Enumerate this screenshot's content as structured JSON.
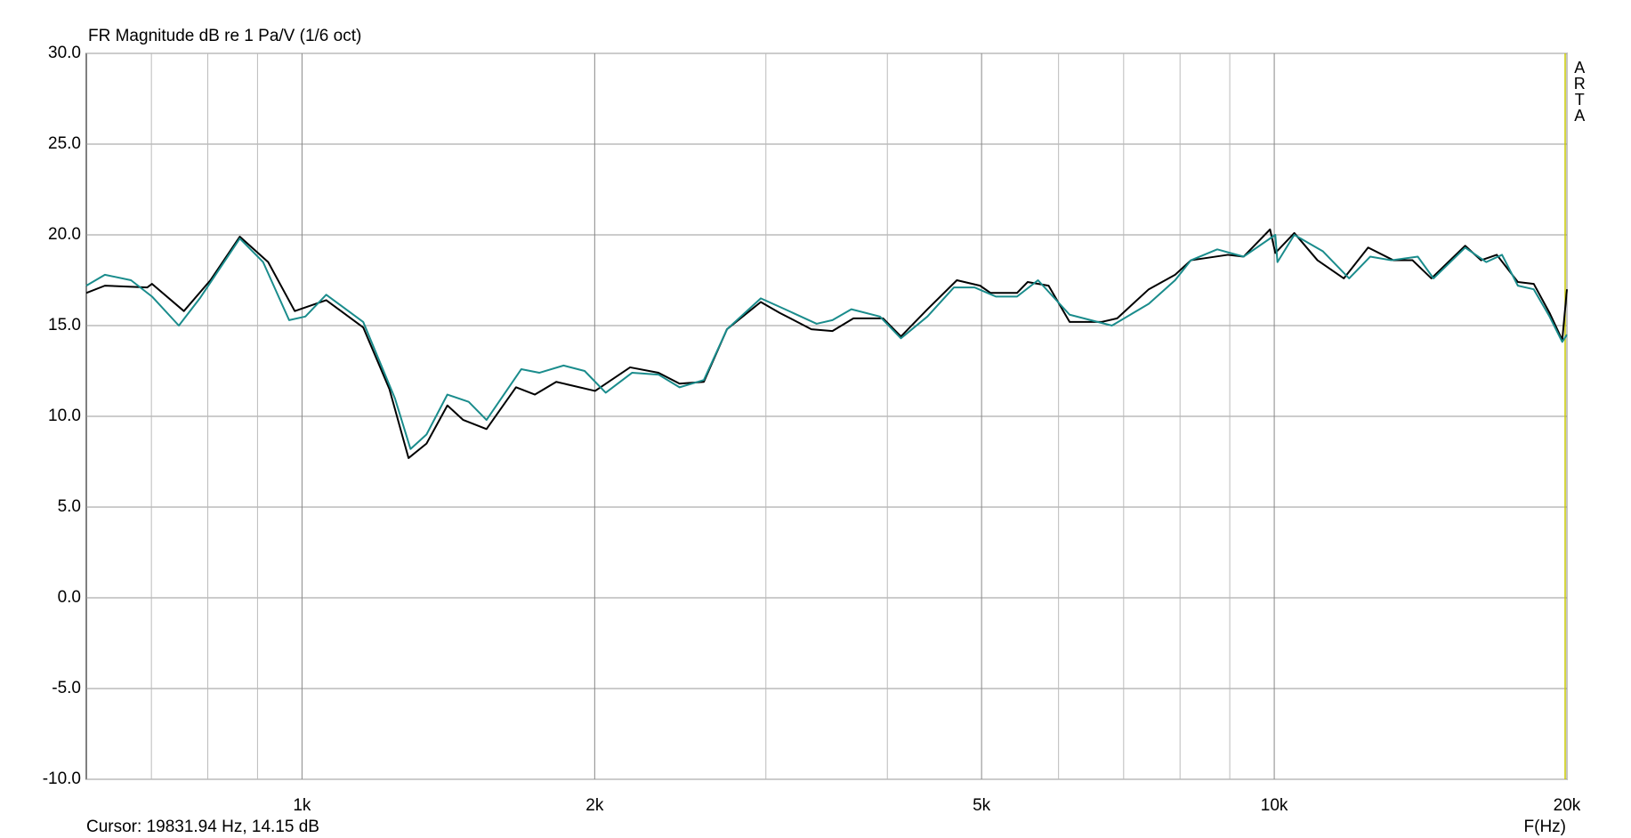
{
  "chart_data": {
    "type": "line",
    "title": "FR Magnitude dB re 1 Pa/V (1/6 oct)",
    "x_label": "F(Hz)",
    "cursor": "Cursor: 19831.94 Hz, 14.15 dB",
    "watermark": "ARTA",
    "xscale": "log",
    "xlim": [
      600,
      20000
    ],
    "ylim": [
      -10,
      30
    ],
    "grid": true,
    "xticks": [
      {
        "value": 1000,
        "label": "1k"
      },
      {
        "value": 2000,
        "label": "2k"
      },
      {
        "value": 5000,
        "label": "5k"
      },
      {
        "value": 10000,
        "label": "10k"
      },
      {
        "value": 20000,
        "label": "20k"
      }
    ],
    "xgrid_minor": [
      700,
      800,
      900,
      3000,
      4000,
      6000,
      7000,
      8000,
      9000
    ],
    "yticks": [
      {
        "value": 30,
        "label": "30.0"
      },
      {
        "value": 25,
        "label": "25.0"
      },
      {
        "value": 20,
        "label": "20.0"
      },
      {
        "value": 15,
        "label": "15.0"
      },
      {
        "value": 10,
        "label": "10.0"
      },
      {
        "value": 5,
        "label": "5.0"
      },
      {
        "value": 0,
        "label": "0.0"
      },
      {
        "value": -5,
        "label": "-5.0"
      },
      {
        "value": -10,
        "label": "-10.0"
      }
    ],
    "series": [
      {
        "color": "#000000",
        "x": [
          600,
          627,
          693,
          701,
          756,
          805,
          863,
          923,
          983,
          1059,
          1156,
          1230,
          1287,
          1343,
          1411,
          1465,
          1548,
          1660,
          1736,
          1826,
          2002,
          2175,
          2326,
          2445,
          2590,
          2736,
          2964,
          3100,
          3341,
          3512,
          3691,
          3959,
          4131,
          4398,
          4716,
          4982,
          5108,
          5438,
          5576,
          5860,
          6159,
          6640,
          6893,
          7429,
          7907,
          8209,
          8960,
          9301,
          9901,
          10025,
          10486,
          11078,
          11790,
          12490,
          13260,
          13875,
          14508,
          15717,
          16318,
          16938,
          17806,
          18488,
          19193,
          19780,
          20000
        ],
        "values": [
          16.8,
          17.2,
          17.1,
          17.3,
          15.8,
          17.5,
          19.9,
          18.5,
          15.8,
          16.4,
          14.9,
          11.5,
          7.7,
          8.5,
          10.6,
          9.8,
          9.3,
          11.6,
          11.2,
          11.9,
          11.4,
          12.7,
          12.4,
          11.8,
          11.9,
          14.8,
          16.3,
          15.7,
          14.8,
          14.7,
          15.4,
          15.4,
          14.4,
          15.9,
          17.5,
          17.2,
          16.8,
          16.8,
          17.4,
          17.2,
          15.2,
          15.2,
          15.4,
          17.0,
          17.8,
          18.6,
          18.9,
          18.8,
          20.3,
          19.0,
          20.1,
          18.6,
          17.6,
          19.3,
          18.6,
          18.6,
          17.6,
          19.4,
          18.6,
          18.9,
          17.4,
          17.3,
          15.7,
          14.2,
          17.0
        ]
      },
      {
        "color": "#1a8c8c",
        "x": [
          600,
          627,
          667,
          701,
          747,
          785,
          863,
          912,
          970,
          1008,
          1059,
          1156,
          1246,
          1293,
          1343,
          1411,
          1484,
          1548,
          1681,
          1754,
          1858,
          1953,
          2053,
          2185,
          2326,
          2445,
          2590,
          2736,
          2964,
          3139,
          3383,
          3512,
          3673,
          3930,
          4131,
          4398,
          4682,
          4920,
          5172,
          5438,
          5715,
          6159,
          6808,
          7429,
          7907,
          8209,
          8737,
          9301,
          10025,
          10076,
          10486,
          11217,
          11940,
          12553,
          13194,
          14048,
          14582,
          15717,
          16520,
          17150,
          17806,
          18488,
          19193,
          19780,
          20000
        ],
        "values": [
          17.2,
          17.8,
          17.5,
          16.6,
          15.0,
          16.5,
          19.8,
          18.5,
          15.3,
          15.5,
          16.7,
          15.2,
          11.0,
          8.2,
          9.0,
          11.2,
          10.8,
          9.8,
          12.6,
          12.4,
          12.8,
          12.5,
          11.3,
          12.4,
          12.3,
          11.6,
          12.0,
          14.8,
          16.5,
          15.9,
          15.1,
          15.3,
          15.9,
          15.5,
          14.3,
          15.5,
          17.1,
          17.1,
          16.6,
          16.6,
          17.5,
          15.6,
          15.0,
          16.2,
          17.5,
          18.6,
          19.2,
          18.8,
          20.0,
          18.5,
          20.0,
          19.1,
          17.6,
          18.8,
          18.6,
          18.8,
          17.6,
          19.3,
          18.5,
          18.9,
          17.2,
          17.0,
          15.5,
          14.1,
          14.5
        ]
      }
    ]
  }
}
